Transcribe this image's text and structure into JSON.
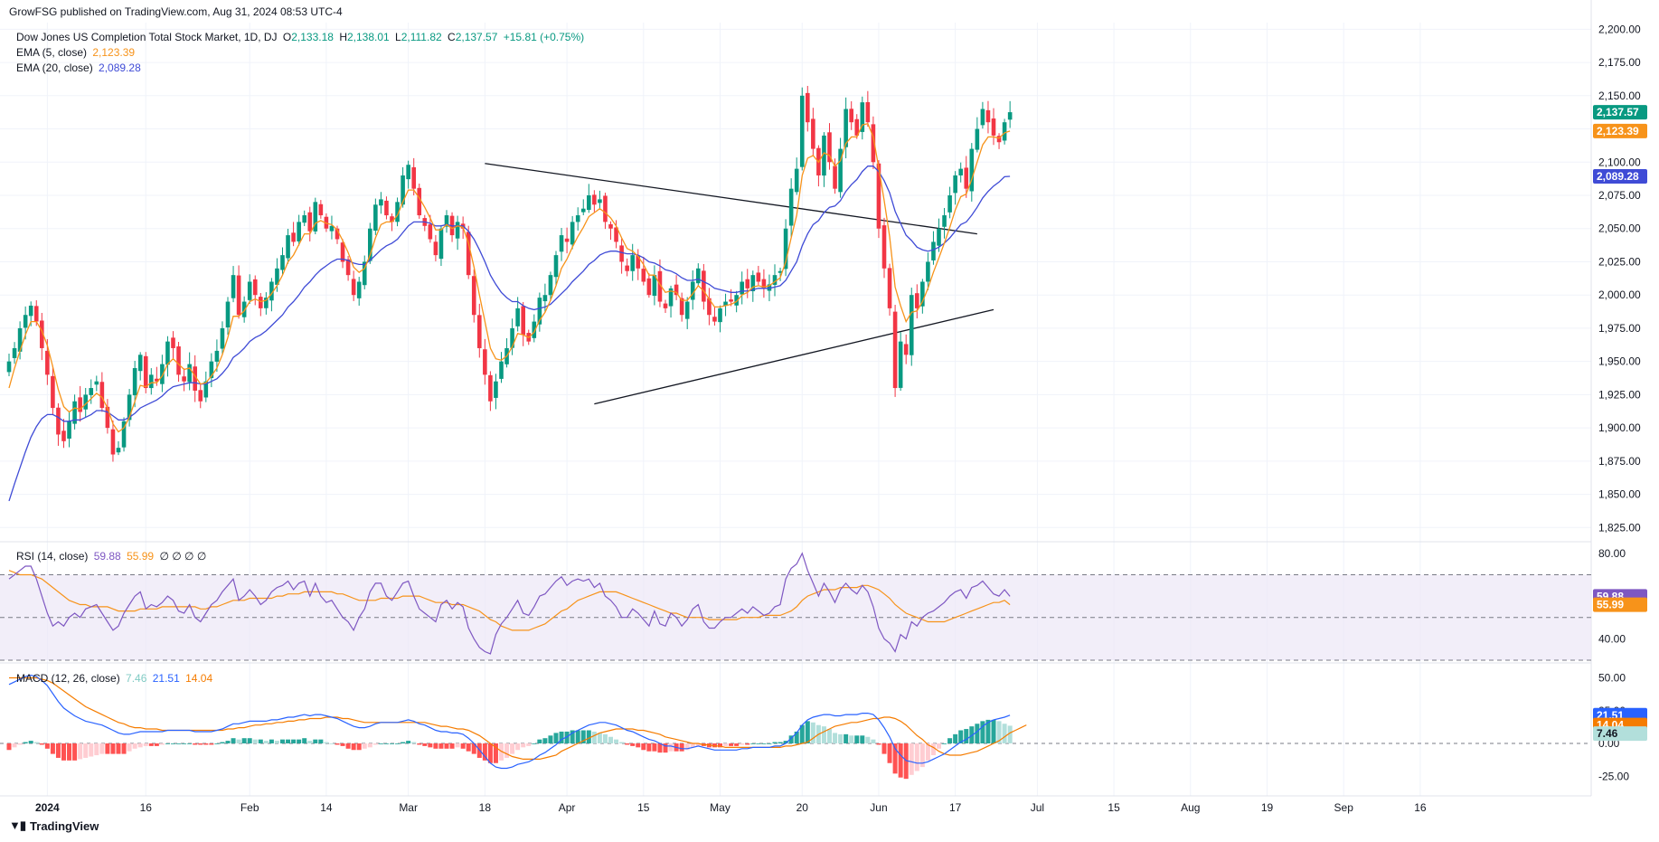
{
  "publisher": "GrowFSG published on TradingView.com, Aug 31, 2024 08:53 UTC-4",
  "footer_brand": "TradingView",
  "legend": {
    "symbol": "Dow Jones US Completion Total Stock Market, 1D, DJ",
    "o_label": "O",
    "o_value": "2,133.18",
    "h_label": "H",
    "h_value": "2,138.01",
    "l_label": "L",
    "l_value": "2,111.82",
    "c_label": "C",
    "c_value": "2,137.57",
    "change": "+15.81 (+0.75%)",
    "ema5_label": "EMA (5, close)",
    "ema5_value": "2,123.39",
    "ema20_label": "EMA (20, close)",
    "ema20_value": "2,089.28",
    "rsi_label": "RSI (14, close)",
    "rsi_value": "59.88",
    "rsi_ma_value": "55.99",
    "rsi_extra": "∅ ∅ ∅ ∅",
    "macd_label": "MACD (12, 26, close)",
    "macd_hist_value": "7.46",
    "macd_value": "21.51",
    "macd_signal_value": "14.04"
  },
  "colors": {
    "up": "#089981",
    "down": "#f23645",
    "ema5": "#f7931a",
    "ema20": "#3f4bd6",
    "rsi": "#7e57c2",
    "rsi_ma": "#f7931a",
    "rsi_band": "#ede7f6",
    "macd": "#2962ff",
    "macd_signal": "#f57c00",
    "hist_up_strong": "#26a69a",
    "hist_up_weak": "#b2dfdb",
    "hist_down_strong": "#ff5252",
    "hist_down_weak": "#ffcdd2",
    "trend": "#131722",
    "grid": "#f0f3fa"
  },
  "chart_data": {
    "type": "candlestick",
    "price_axis": {
      "ylim": [
        1815,
        2205
      ],
      "ticks": [
        "2,200.00",
        "2,175.00",
        "2,150.00",
        "2,125.00",
        "2,100.00",
        "2,075.00",
        "2,050.00",
        "2,025.00",
        "2,000.00",
        "1,975.00",
        "1,950.00",
        "1,925.00",
        "1,900.00",
        "1,875.00",
        "1,850.00",
        "1,825.00"
      ],
      "tick_values": [
        2200,
        2175,
        2150,
        2125,
        2100,
        2075,
        2050,
        2025,
        2000,
        1975,
        1950,
        1925,
        1900,
        1875,
        1850,
        1825
      ]
    },
    "x_labels": [
      "2024",
      "16",
      "Feb",
      "14",
      "Mar",
      "18",
      "Apr",
      "15",
      "May",
      "20",
      "Jun",
      "17",
      "Jul",
      "15",
      "Aug",
      "19",
      "Sep",
      "16"
    ],
    "x_label_index": [
      7,
      25,
      44,
      58,
      73,
      87,
      102,
      116,
      130,
      145,
      159,
      173,
      188,
      202,
      216,
      230,
      244,
      258
    ],
    "closes": [
      1950,
      1960,
      1975,
      1985,
      1992,
      1980,
      1960,
      1940,
      1915,
      1895,
      1890,
      1905,
      1920,
      1912,
      1925,
      1930,
      1935,
      1915,
      1900,
      1880,
      1885,
      1905,
      1925,
      1945,
      1955,
      1930,
      1940,
      1935,
      1948,
      1965,
      1960,
      1940,
      1935,
      1948,
      1928,
      1920,
      1935,
      1950,
      1958,
      1975,
      1995,
      2015,
      1985,
      1995,
      2010,
      2000,
      1990,
      1998,
      2010,
      2020,
      2030,
      2045,
      2040,
      2055,
      2060,
      2048,
      2070,
      2060,
      2050,
      2052,
      2042,
      2025,
      2015,
      2000,
      2010,
      2025,
      2050,
      2068,
      2072,
      2060,
      2055,
      2070,
      2090,
      2098,
      2080,
      2060,
      2052,
      2042,
      2030,
      2050,
      2060,
      2045,
      2055,
      2050,
      2015,
      1985,
      1960,
      1940,
      1920,
      1935,
      1950,
      1960,
      1975,
      1990,
      1970,
      1965,
      1980,
      1998,
      2000,
      2015,
      2030,
      2045,
      2040,
      2055,
      2060,
      2065,
      2075,
      2068,
      2072,
      2055,
      2050,
      2040,
      2025,
      2018,
      2030,
      2020,
      2010,
      2000,
      2015,
      1995,
      1990,
      2005,
      2000,
      1985,
      1995,
      2010,
      2020,
      1995,
      1985,
      1980,
      1990,
      1995,
      1995,
      2000,
      2010,
      2005,
      2015,
      2010,
      2005,
      2008,
      2015,
      2018,
      2050,
      2080,
      2095,
      2150,
      2130,
      2110,
      2090,
      2120,
      2100,
      2080,
      2110,
      2140,
      2130,
      2120,
      2145,
      2130,
      2100,
      2050,
      2020,
      1990,
      1930,
      1965,
      1955,
      2000,
      1990,
      2010,
      2025,
      2040,
      2050,
      2060,
      2075,
      2090,
      2095,
      2080,
      2110,
      2125,
      2140,
      2130,
      2120,
      2115,
      2130,
      2137.57
    ],
    "ema5": [
      1930,
      1945,
      1958,
      1970,
      1980,
      1980,
      1973,
      1962,
      1946,
      1929,
      1916,
      1912,
      1915,
      1914,
      1918,
      1922,
      1926,
      1923,
      1915,
      1903,
      1897,
      1900,
      1908,
      1920,
      1932,
      1931,
      1934,
      1934,
      1939,
      1948,
      1952,
      1948,
      1944,
      1945,
      1939,
      1933,
      1934,
      1939,
      1945,
      1955,
      1968,
      1984,
      1984,
      1988,
      1995,
      1997,
      1995,
      1996,
      2001,
      2007,
      2015,
      2025,
      2030,
      2038,
      2046,
      2046,
      2054,
      2056,
      2054,
      2053,
      2049,
      2041,
      2032,
      2021,
      2017,
      2020,
      2030,
      2043,
      2053,
      2055,
      2055,
      2060,
      2070,
      2079,
      2079,
      2073,
      2066,
      2058,
      2049,
      2049,
      2053,
      2050,
      2052,
      2051,
      2039,
      2021,
      2000,
      1980,
      1960,
      1952,
      1951,
      1954,
      1961,
      1971,
      1970,
      1968,
      1972,
      1981,
      1987,
      1996,
      2007,
      2020,
      2027,
      2036,
      2044,
      2051,
      2059,
      2062,
      2065,
      2062,
      2058,
      2052,
      2043,
      2035,
      2033,
      2029,
      2023,
      2015,
      2015,
      2008,
      2002,
      2003,
      2002,
      1996,
      1996,
      2001,
      2007,
      2003,
      1997,
      1991,
      1991,
      1992,
      1993,
      1995,
      2000,
      2002,
      2006,
      2007,
      2006,
      2007,
      2010,
      2013,
      2025,
      2043,
      2060,
      2090,
      2103,
      2105,
      2100,
      2107,
      2105,
      2097,
      2101,
      2114,
      2119,
      2119,
      2128,
      2129,
      2119,
      2096,
      2071,
      2044,
      2006,
      1992,
      1980,
      1987,
      1988,
      1995,
      2005,
      2017,
      2028,
      2039,
      2051,
      2064,
      2074,
      2076,
      2087,
      2100,
      2113,
      2119,
      2119,
      2118,
      2122,
      2123.39
    ],
    "ema20": [
      1845,
      1858,
      1870,
      1882,
      1893,
      1901,
      1907,
      1910,
      1910,
      1908,
      1905,
      1905,
      1906,
      1906,
      1908,
      1910,
      1913,
      1913,
      1912,
      1909,
      1906,
      1906,
      1908,
      1911,
      1915,
      1917,
      1919,
      1921,
      1924,
      1928,
      1931,
      1932,
      1933,
      1934,
      1934,
      1933,
      1933,
      1935,
      1937,
      1941,
      1946,
      1953,
      1956,
      1960,
      1965,
      1968,
      1970,
      1973,
      1977,
      1981,
      1985,
      1991,
      1995,
      2000,
      2006,
      2010,
      2015,
      2019,
      2022,
      2025,
      2027,
      2027,
      2026,
      2024,
      2023,
      2023,
      2026,
      2030,
      2034,
      2037,
      2039,
      2042,
      2047,
      2052,
      2055,
      2055,
      2055,
      2054,
      2052,
      2052,
      2053,
      2052,
      2052,
      2052,
      2048,
      2042,
      2034,
      2025,
      2015,
      2008,
      2002,
      1998,
      1995,
      1995,
      1992,
      1990,
      1989,
      1990,
      1991,
      1993,
      1997,
      2001,
      2005,
      2010,
      2014,
      2018,
      2023,
      2026,
      2030,
      2032,
      2033,
      2033,
      2032,
      2031,
      2031,
      2030,
      2028,
      2025,
      2024,
      2022,
      2019,
      2018,
      2016,
      2013,
      2011,
      2011,
      2012,
      2010,
      2008,
      2005,
      2004,
      2003,
      2002,
      2002,
      2003,
      2003,
      2004,
      2005,
      2005,
      2005,
      2006,
      2007,
      2011,
      2018,
      2025,
      2037,
      2046,
      2053,
      2056,
      2062,
      2066,
      2067,
      2071,
      2078,
      2083,
      2087,
      2093,
      2097,
      2097,
      2093,
      2086,
      2077,
      2063,
      2054,
      2045,
      2041,
      2036,
      2034,
      2033,
      2034,
      2036,
      2039,
      2043,
      2048,
      2053,
      2055,
      2060,
      2066,
      2073,
      2078,
      2082,
      2085,
      2089,
      2089.28
    ],
    "rsi": {
      "ylim": [
        30,
        85
      ],
      "bands": [
        70,
        50,
        30
      ],
      "ticks": [
        "80.00",
        "40.00"
      ],
      "tick_values": [
        80,
        40
      ],
      "values": [
        68,
        70,
        72,
        74,
        74,
        68,
        60,
        52,
        46,
        48,
        46,
        50,
        52,
        50,
        54,
        55,
        56,
        52,
        48,
        44,
        46,
        52,
        56,
        60,
        62,
        54,
        56,
        55,
        57,
        60,
        58,
        53,
        52,
        56,
        50,
        48,
        52,
        56,
        58,
        62,
        65,
        68,
        58,
        60,
        63,
        60,
        56,
        58,
        62,
        64,
        65,
        67,
        63,
        66,
        67,
        60,
        66,
        60,
        57,
        58,
        54,
        50,
        48,
        44,
        50,
        54,
        62,
        66,
        66,
        60,
        58,
        62,
        66,
        67,
        60,
        54,
        52,
        50,
        48,
        56,
        58,
        54,
        57,
        55,
        45,
        40,
        36,
        34,
        33,
        42,
        47,
        50,
        54,
        58,
        52,
        51,
        55,
        60,
        61,
        64,
        67,
        69,
        65,
        67,
        68,
        67,
        68,
        64,
        66,
        60,
        58,
        55,
        50,
        50,
        54,
        52,
        49,
        46,
        53,
        47,
        46,
        52,
        50,
        46,
        49,
        54,
        56,
        48,
        45,
        45,
        48,
        50,
        50,
        52,
        54,
        52,
        55,
        53,
        51,
        52,
        55,
        56,
        68,
        73,
        75,
        80,
        72,
        66,
        60,
        66,
        62,
        57,
        63,
        66,
        63,
        61,
        65,
        62,
        55,
        45,
        40,
        38,
        34,
        42,
        40,
        48,
        46,
        50,
        52,
        53,
        55,
        57,
        60,
        62,
        63,
        59,
        64,
        65,
        67,
        64,
        61,
        60,
        63,
        59.88
      ],
      "ma": [
        72,
        71,
        70,
        70,
        70,
        69,
        68,
        66,
        64,
        62,
        60,
        58,
        57,
        56,
        56,
        55,
        55,
        55,
        55,
        54,
        53,
        53,
        53,
        53,
        54,
        54,
        54,
        54,
        55,
        55,
        55,
        55,
        55,
        55,
        55,
        54,
        54,
        55,
        55,
        56,
        57,
        58,
        58,
        58,
        59,
        59,
        59,
        59,
        59,
        60,
        60,
        61,
        61,
        61,
        62,
        62,
        62,
        62,
        62,
        62,
        61,
        61,
        60,
        59,
        58,
        58,
        58,
        58,
        59,
        59,
        59,
        59,
        60,
        60,
        60,
        60,
        59,
        58,
        57,
        57,
        57,
        56,
        56,
        56,
        55,
        54,
        53,
        51,
        49,
        48,
        46,
        45,
        44,
        44,
        44,
        44,
        45,
        46,
        47,
        49,
        51,
        53,
        54,
        56,
        58,
        59,
        60,
        61,
        62,
        62,
        62,
        62,
        61,
        60,
        59,
        58,
        57,
        56,
        55,
        54,
        53,
        52,
        52,
        51,
        50,
        50,
        50,
        50,
        49,
        49,
        49,
        49,
        49,
        49,
        50,
        50,
        50,
        50,
        51,
        51,
        51,
        51,
        52,
        53,
        55,
        58,
        60,
        61,
        62,
        63,
        63,
        63,
        64,
        64,
        64,
        64,
        65,
        65,
        64,
        63,
        61,
        59,
        56,
        54,
        52,
        51,
        50,
        49,
        48,
        48,
        48,
        48,
        49,
        50,
        51,
        52,
        53,
        54,
        55,
        56,
        57,
        57,
        58,
        55.99
      ]
    },
    "macd": {
      "ylim": [
        -40,
        60
      ],
      "ticks": [
        "50.00",
        "25.00",
        "0.00",
        "-25.00"
      ],
      "tick_values": [
        50,
        25,
        0,
        -25
      ],
      "macd": [
        45,
        47,
        49,
        51,
        52,
        51,
        48,
        44,
        38,
        32,
        27,
        24,
        21,
        19,
        17,
        16,
        15,
        14,
        12,
        10,
        8,
        7,
        7,
        8,
        9,
        9,
        9,
        9,
        9,
        10,
        10,
        10,
        10,
        10,
        9,
        9,
        9,
        9,
        10,
        11,
        13,
        15,
        15,
        16,
        17,
        17,
        17,
        17,
        18,
        18,
        19,
        20,
        20,
        21,
        22,
        21,
        22,
        22,
        21,
        20,
        19,
        17,
        15,
        13,
        12,
        12,
        13,
        15,
        16,
        16,
        16,
        16,
        17,
        18,
        17,
        15,
        14,
        12,
        10,
        9,
        9,
        8,
        8,
        7,
        4,
        0,
        -5,
        -10,
        -15,
        -18,
        -19,
        -19,
        -18,
        -16,
        -15,
        -14,
        -12,
        -9,
        -7,
        -4,
        -1,
        3,
        5,
        8,
        10,
        12,
        14,
        15,
        16,
        16,
        15,
        14,
        12,
        10,
        9,
        7,
        5,
        3,
        2,
        0,
        -2,
        -2,
        -3,
        -4,
        -4,
        -3,
        -2,
        -3,
        -4,
        -5,
        -5,
        -5,
        -5,
        -5,
        -4,
        -4,
        -3,
        -3,
        -3,
        -3,
        -2,
        -2,
        0,
        4,
        8,
        14,
        18,
        20,
        21,
        22,
        22,
        21,
        21,
        22,
        22,
        22,
        23,
        23,
        22,
        18,
        12,
        5,
        -4,
        -9,
        -13,
        -14,
        -15,
        -15,
        -14,
        -12,
        -10,
        -8,
        -5,
        -2,
        1,
        3,
        6,
        9,
        13,
        16,
        18,
        19,
        20,
        21.51
      ],
      "signal": [
        50,
        50,
        50,
        50,
        50,
        50,
        49,
        48,
        46,
        43,
        40,
        37,
        34,
        31,
        28,
        26,
        24,
        22,
        20,
        18,
        16,
        15,
        13,
        12,
        12,
        11,
        11,
        11,
        10,
        10,
        10,
        10,
        10,
        10,
        10,
        10,
        10,
        10,
        10,
        10,
        11,
        11,
        12,
        12,
        13,
        14,
        14,
        15,
        15,
        16,
        16,
        17,
        17,
        18,
        18,
        19,
        19,
        19,
        20,
        20,
        20,
        19,
        19,
        18,
        17,
        16,
        16,
        16,
        16,
        16,
        16,
        16,
        16,
        16,
        16,
        16,
        16,
        15,
        14,
        13,
        13,
        12,
        11,
        11,
        10,
        8,
        6,
        3,
        0,
        -3,
        -6,
        -8,
        -10,
        -11,
        -12,
        -12,
        -12,
        -12,
        -11,
        -10,
        -9,
        -6,
        -4,
        -2,
        0,
        2,
        4,
        6,
        8,
        9,
        10,
        11,
        11,
        11,
        11,
        10,
        10,
        9,
        8,
        7,
        5,
        4,
        3,
        2,
        1,
        0,
        0,
        -1,
        -1,
        -2,
        -2,
        -3,
        -3,
        -3,
        -3,
        -3,
        -3,
        -3,
        -3,
        -3,
        -3,
        -3,
        -2,
        -2,
        -1,
        0,
        1,
        4,
        7,
        9,
        11,
        13,
        14,
        15,
        16,
        16,
        17,
        18,
        19,
        19,
        20,
        20,
        19,
        17,
        14,
        10,
        6,
        3,
        -1,
        -3,
        -6,
        -8,
        -9,
        -9,
        -9,
        -8,
        -7,
        -6,
        -4,
        -2,
        0,
        2,
        5,
        8,
        10,
        12,
        14.04
      ],
      "hist_last": "7.46"
    },
    "trendlines": [
      {
        "from": [
          87,
          2099
        ],
        "to": [
          177,
          2046
        ]
      },
      {
        "from": [
          107,
          1918
        ],
        "to": [
          180,
          1989
        ]
      }
    ]
  }
}
